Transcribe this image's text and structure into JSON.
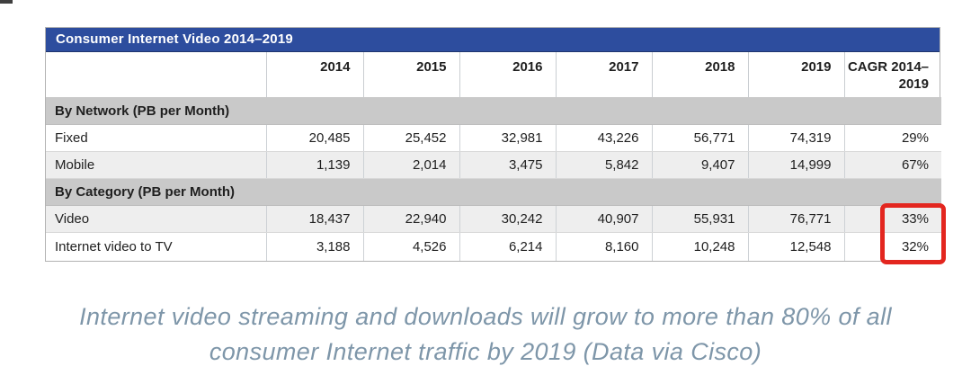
{
  "chart_data": {
    "type": "table",
    "title": "Consumer Internet Video 2014–2019",
    "columns": [
      "",
      "2014",
      "2015",
      "2016",
      "2017",
      "2018",
      "2019",
      "CAGR 2014–2019"
    ],
    "sections": [
      {
        "header": "By Network (PB per Month)",
        "rows": [
          {
            "label": "Fixed",
            "values": [
              "20,485",
              "25,452",
              "32,981",
              "43,226",
              "56,771",
              "74,319",
              "29%"
            ]
          },
          {
            "label": "Mobile",
            "values": [
              "1,139",
              "2,014",
              "3,475",
              "5,842",
              "9,407",
              "14,999",
              "67%"
            ]
          }
        ]
      },
      {
        "header": "By Category (PB per Month)",
        "rows": [
          {
            "label": "Video",
            "values": [
              "18,437",
              "22,940",
              "30,242",
              "40,907",
              "55,931",
              "76,771",
              "33%"
            ]
          },
          {
            "label": "Internet video to TV",
            "values": [
              "3,188",
              "4,526",
              "6,214",
              "8,160",
              "10,248",
              "12,548",
              "32%"
            ]
          }
        ]
      }
    ],
    "highlight": {
      "description": "red box around CAGR values of Video and Internet video to TV rows",
      "values": [
        "33%",
        "32%"
      ],
      "color": "#e3261f"
    },
    "layout_hints": {
      "header_fill": "#2d4d9e",
      "section_fill": "#c9c9c9",
      "shaded_row_fill": "#eeeeee"
    }
  },
  "caption": {
    "line1": "Internet video streaming and downloads will grow to more than 80% of all",
    "line2": "consumer Internet traffic by 2019 (Data via Cisco)"
  }
}
